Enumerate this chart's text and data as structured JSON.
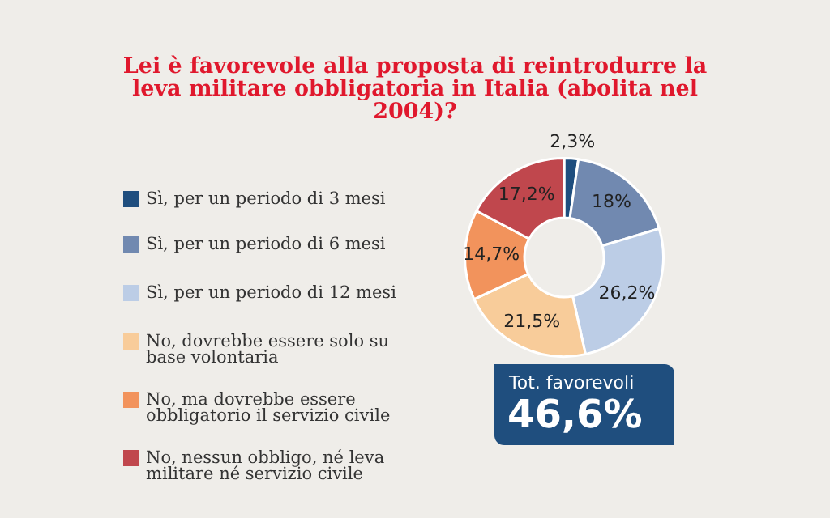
{
  "chart_data": {
    "type": "donut",
    "title": "Lei è favorevole alla proposta di reintrodurre la leva militare obbligatoria in Italia (abolita nel 2004)?",
    "categories": [
      "Sì, per un periodo di 3 mesi",
      "Sì, per un periodo di 6 mesi",
      "Sì, per un periodo di 12 mesi",
      "No, dovrebbe essere solo su base volontaria",
      "No, ma dovrebbe essere obbligatorio il servizio civile",
      "No, nessun obbligo, né leva militare né servizio civile"
    ],
    "values": [
      2.3,
      18,
      26.2,
      21.5,
      14.7,
      17.2
    ],
    "value_labels": [
      "2,3%",
      "18%",
      "26,2%",
      "21,5%",
      "14,7%",
      "17,2%"
    ],
    "colors": [
      "#1f4e7e",
      "#7189b0",
      "#bccde6",
      "#f8cc9a",
      "#f2935c",
      "#c0474d"
    ],
    "legend": "left",
    "annotations": [
      "Tot. favorevoli",
      "46,6%"
    ]
  }
}
